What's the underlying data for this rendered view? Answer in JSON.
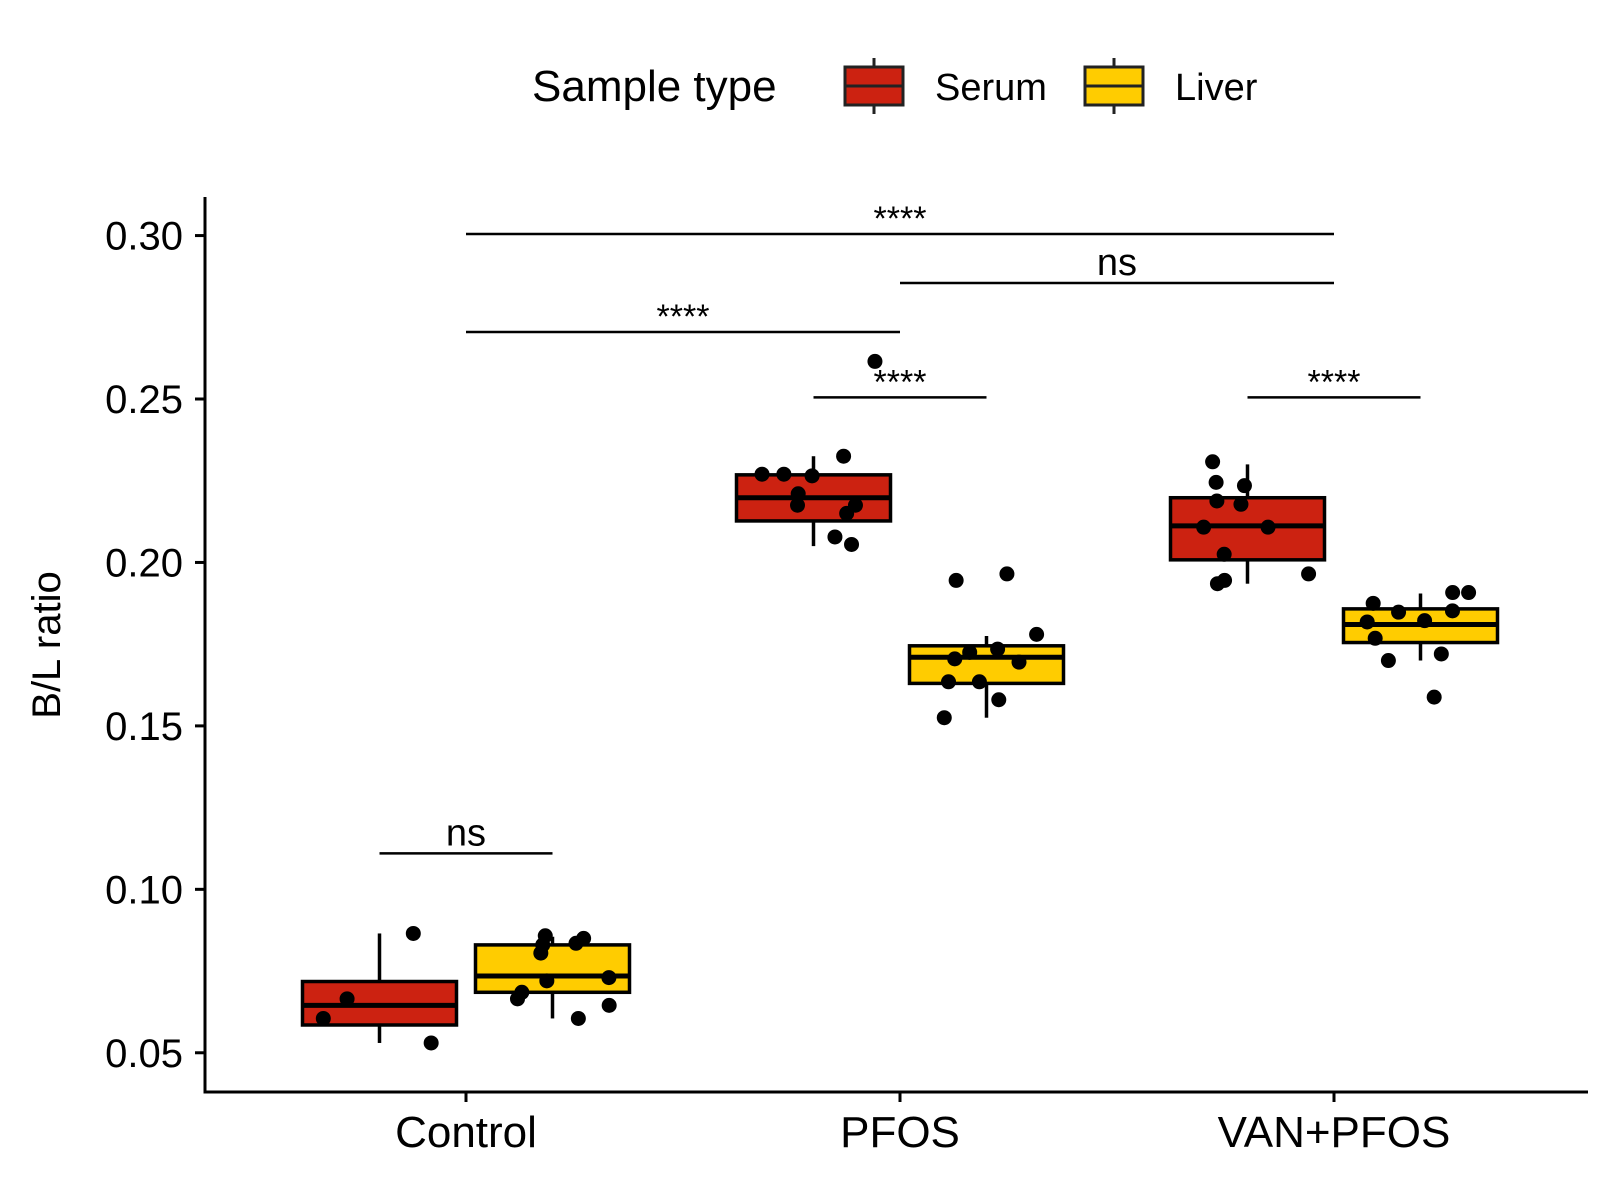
{
  "chart_data": {
    "type": "box",
    "title": "",
    "xlabel": "",
    "ylabel": "B/L ratio",
    "ylim": [
      0.038,
      0.3118
    ],
    "yticks": [
      0.05,
      0.1,
      0.15,
      0.2,
      0.25,
      0.3
    ],
    "ytick_labels": [
      "0.05",
      "0.10",
      "0.15",
      "0.20",
      "0.25",
      "0.30"
    ],
    "categories": [
      "Control",
      "PFOS",
      "VAN+PFOS"
    ],
    "grid": false,
    "legend": {
      "title": "Sample type",
      "position": "top",
      "entries": [
        {
          "name": "Serum",
          "color": "#CC2211"
        },
        {
          "name": "Liver",
          "color": "#FFCC00"
        }
      ]
    },
    "series": [
      {
        "name": "Serum",
        "color": "#CC2211",
        "boxes": [
          {
            "category": "Control",
            "min": 0.053,
            "q1": 0.0585,
            "median": 0.0645,
            "q3": 0.0718,
            "max": 0.0865,
            "points": [
              0.0865,
              0.0665,
              0.0605,
              0.053
            ]
          },
          {
            "category": "PFOS",
            "min": 0.205,
            "q1": 0.2127,
            "median": 0.2198,
            "q3": 0.2268,
            "max": 0.2325,
            "points": [
              0.2615,
              0.2325,
              0.227,
              0.227,
              0.2265,
              0.221,
              0.2175,
              0.2175,
              0.215,
              0.2078,
              0.2055
            ]
          },
          {
            "category": "VAN+PFOS",
            "min": 0.1935,
            "q1": 0.2008,
            "median": 0.2112,
            "q3": 0.2198,
            "max": 0.23,
            "points": [
              0.2308,
              0.2245,
              0.2235,
              0.2188,
              0.2178,
              0.2108,
              0.2108,
              0.2025,
              0.1965,
              0.1945,
              0.1935
            ]
          }
        ]
      },
      {
        "name": "Liver",
        "color": "#FFCC00",
        "boxes": [
          {
            "category": "Control",
            "min": 0.0605,
            "q1": 0.0685,
            "median": 0.0735,
            "q3": 0.083,
            "max": 0.0855,
            "points": [
              0.0858,
              0.085,
              0.0835,
              0.083,
              0.0805,
              0.073,
              0.072,
              0.0685,
              0.0665,
              0.0645,
              0.0605
            ]
          },
          {
            "category": "PFOS",
            "min": 0.1525,
            "q1": 0.163,
            "median": 0.171,
            "q3": 0.1745,
            "max": 0.1775,
            "points": [
              0.1965,
              0.1945,
              0.178,
              0.1735,
              0.1725,
              0.1705,
              0.1695,
              0.1635,
              0.1635,
              0.158,
              0.1525
            ]
          },
          {
            "category": "VAN+PFOS",
            "min": 0.17,
            "q1": 0.1755,
            "median": 0.181,
            "q3": 0.1858,
            "max": 0.1905,
            "points": [
              0.1908,
              0.1908,
              0.1875,
              0.1852,
              0.1848,
              0.1822,
              0.1818,
              0.1768,
              0.172,
              0.17,
              0.1588
            ]
          }
        ]
      }
    ],
    "annotations": [
      {
        "label": "ns",
        "from": {
          "category": "Control",
          "series": "Serum"
        },
        "to": {
          "category": "Control",
          "series": "Liver"
        },
        "y": 0.111
      },
      {
        "label": "****",
        "from": {
          "category": "PFOS",
          "series": "Serum"
        },
        "to": {
          "category": "PFOS",
          "series": "Liver"
        },
        "y": 0.2505
      },
      {
        "label": "****",
        "from": {
          "category": "VAN+PFOS",
          "series": "Serum"
        },
        "to": {
          "category": "VAN+PFOS",
          "series": "Liver"
        },
        "y": 0.2505
      },
      {
        "label": "****",
        "from": {
          "category": "Control"
        },
        "to": {
          "category": "PFOS"
        },
        "y": 0.2705
      },
      {
        "label": "ns",
        "from": {
          "category": "PFOS"
        },
        "to": {
          "category": "VAN+PFOS"
        },
        "y": 0.2855
      },
      {
        "label": "****",
        "from": {
          "category": "Control"
        },
        "to": {
          "category": "VAN+PFOS"
        },
        "y": 0.3005
      }
    ]
  }
}
